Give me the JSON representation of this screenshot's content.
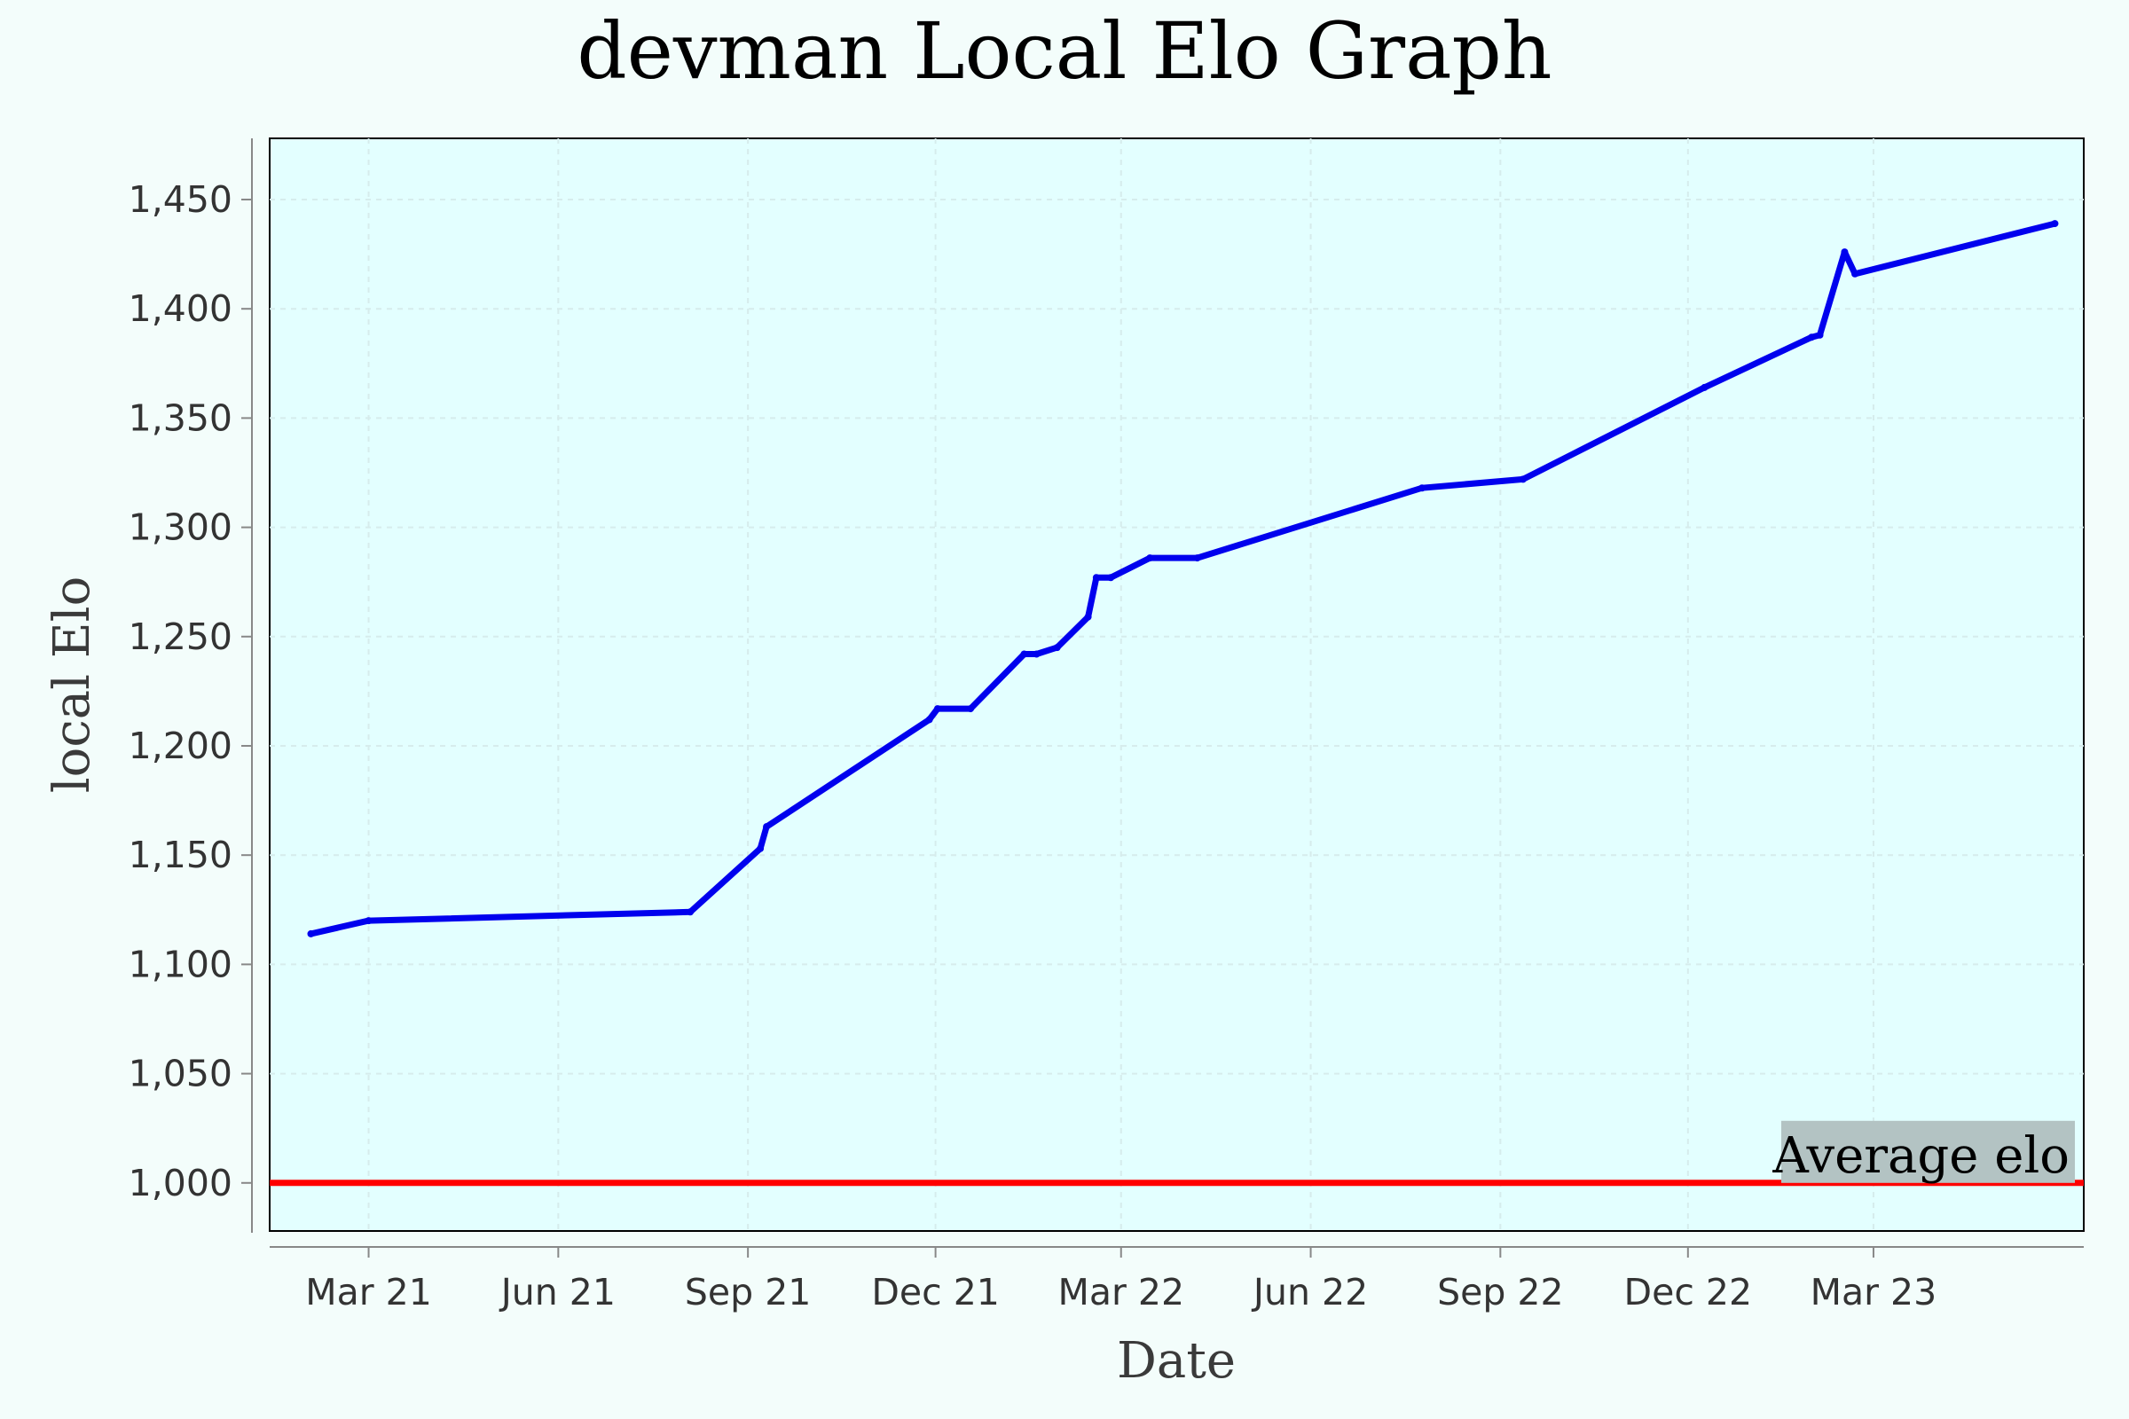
{
  "chart_data": {
    "type": "line",
    "title": "devman Local Elo Graph",
    "xlabel": "Date",
    "ylabel": "local Elo",
    "x_ticks": [
      {
        "label": "Mar 21",
        "date": "2021-03-01"
      },
      {
        "label": "Jun 21",
        "date": "2021-06-01"
      },
      {
        "label": "Sep 21",
        "date": "2021-09-01"
      },
      {
        "label": "Dec 21",
        "date": "2021-12-01"
      },
      {
        "label": "Mar 22",
        "date": "2022-03-01"
      },
      {
        "label": "Jun 22",
        "date": "2022-06-01"
      },
      {
        "label": "Sep 22",
        "date": "2022-09-01"
      },
      {
        "label": "Dec 22",
        "date": "2022-12-01"
      },
      {
        "label": "Mar 23",
        "date": "2023-03-01"
      }
    ],
    "y_ticks": [
      {
        "label": "1,000",
        "value": 1000
      },
      {
        "label": "1,050",
        "value": 1050
      },
      {
        "label": "1,100",
        "value": 1100
      },
      {
        "label": "1,150",
        "value": 1150
      },
      {
        "label": "1,200",
        "value": 1200
      },
      {
        "label": "1,250",
        "value": 1250
      },
      {
        "label": "1,300",
        "value": 1300
      },
      {
        "label": "1,350",
        "value": 1350
      },
      {
        "label": "1,400",
        "value": 1400
      },
      {
        "label": "1,450",
        "value": 1450
      }
    ],
    "xlim": [
      "2021-01-12",
      "2023-06-11"
    ],
    "ylim": [
      978,
      1478
    ],
    "grid": true,
    "series": [
      {
        "color": "#0000ee",
        "points": [
          {
            "x": "2021-02-01",
            "y": 1114
          },
          {
            "x": "2021-03-01",
            "y": 1120
          },
          {
            "x": "2021-08-04",
            "y": 1124
          },
          {
            "x": "2021-09-07",
            "y": 1153
          },
          {
            "x": "2021-09-10",
            "y": 1163
          },
          {
            "x": "2021-11-28",
            "y": 1212
          },
          {
            "x": "2021-12-02",
            "y": 1217
          },
          {
            "x": "2021-12-18",
            "y": 1217
          },
          {
            "x": "2022-01-13",
            "y": 1242
          },
          {
            "x": "2022-01-19",
            "y": 1242
          },
          {
            "x": "2022-01-29",
            "y": 1245
          },
          {
            "x": "2022-02-13",
            "y": 1259
          },
          {
            "x": "2022-02-17",
            "y": 1277
          },
          {
            "x": "2022-02-24",
            "y": 1277
          },
          {
            "x": "2022-03-15",
            "y": 1286
          },
          {
            "x": "2022-04-07",
            "y": 1286
          },
          {
            "x": "2022-07-25",
            "y": 1318
          },
          {
            "x": "2022-09-12",
            "y": 1322
          },
          {
            "x": "2022-12-09",
            "y": 1364
          },
          {
            "x": "2023-01-30",
            "y": 1387
          },
          {
            "x": "2023-02-03",
            "y": 1388
          },
          {
            "x": "2023-02-15",
            "y": 1426
          },
          {
            "x": "2023-02-20",
            "y": 1416
          },
          {
            "x": "2023-05-28",
            "y": 1439
          }
        ]
      }
    ],
    "reference_line": {
      "y": 1000,
      "color": "#ff0000",
      "label": "Average elo"
    }
  },
  "colors": {
    "page_background": "#f3fdfb",
    "plot_background": "#e3ffff",
    "annotation_background": "#b3c3c3",
    "axis": "#888888",
    "frame": "#000000"
  }
}
